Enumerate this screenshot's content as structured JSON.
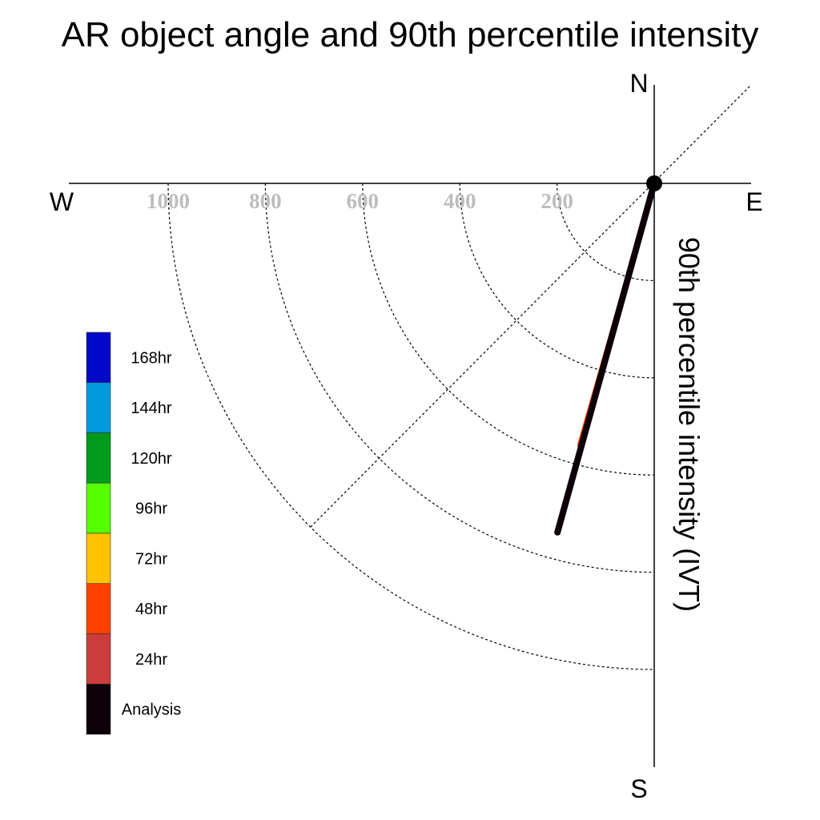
{
  "chart_data": {
    "type": "polar-line",
    "title": "AR object angle and 90th percentile intensity",
    "ylabel": "90th percentile intensity (IVT)",
    "compass": {
      "north": "N",
      "south": "S",
      "east": "E",
      "west": "W"
    },
    "radial_ticks": [
      200,
      400,
      600,
      800,
      1000
    ],
    "radial_tick_labels": [
      "200",
      "400",
      "600",
      "800",
      "1000"
    ],
    "radial_range": [
      0,
      1200
    ],
    "grid": "dashed quarter circles, SW diagonal",
    "legend_position": "left",
    "legend": [
      {
        "label": "168hr",
        "color": "#0008c8"
      },
      {
        "label": "144hr",
        "color": "#0099dd"
      },
      {
        "label": "120hr",
        "color": "#009b1a"
      },
      {
        "label": "96hr",
        "color": "#55ff00"
      },
      {
        "label": "72hr",
        "color": "#ffc200"
      },
      {
        "label": "48hr",
        "color": "#ff4000"
      },
      {
        "label": "24hr",
        "color": "#cc3c3c"
      },
      {
        "label": "Analysis",
        "color": "#0d0008"
      }
    ],
    "series": [
      {
        "name": "48hr",
        "color": "#ff4000",
        "bearing_deg": 196.0,
        "intensity": 560
      },
      {
        "name": "72hr",
        "color": "#ffc200",
        "bearing_deg": 195.5,
        "intensity": 530
      },
      {
        "name": "24hr",
        "color": "#cc3c3c",
        "bearing_deg": 195.5,
        "intensity": 690
      },
      {
        "name": "Analysis",
        "color": "#0d0008",
        "bearing_deg": 195.5,
        "intensity": 745
      }
    ]
  }
}
